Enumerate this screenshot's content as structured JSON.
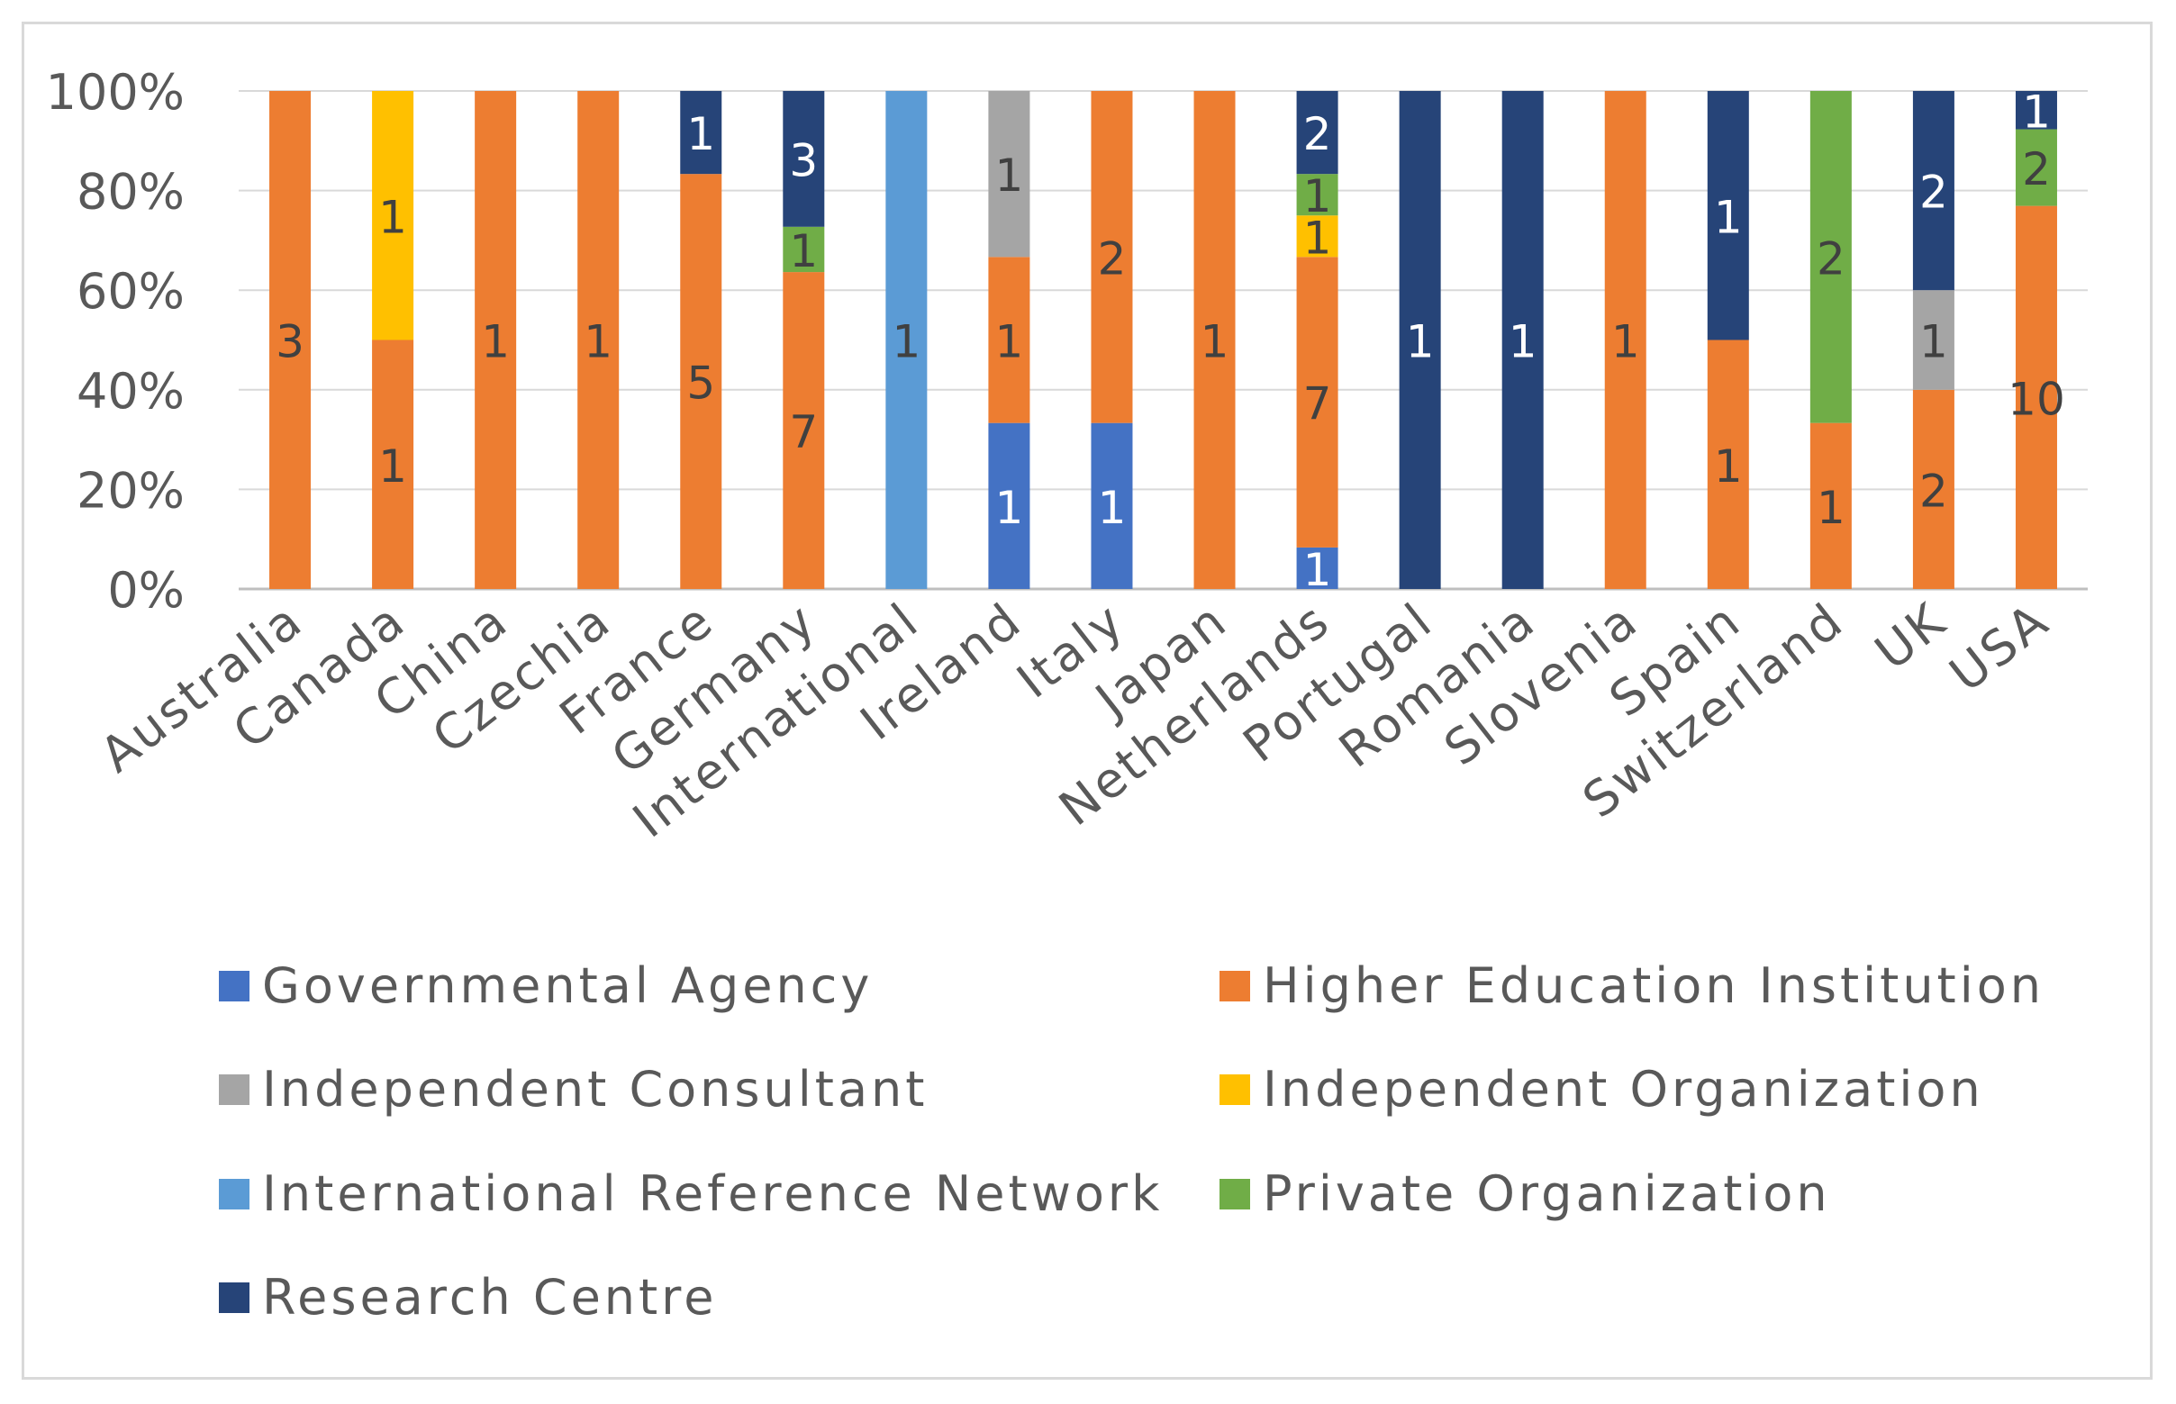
{
  "chart_data": {
    "type": "bar",
    "stacked": "percent",
    "title": "",
    "xlabel": "",
    "ylabel": "",
    "ylim": [
      0,
      100
    ],
    "yticks": [
      "0%",
      "20%",
      "40%",
      "60%",
      "80%",
      "100%"
    ],
    "grid": true,
    "legend_position": "bottom",
    "categories": [
      "Australia",
      "Canada",
      "China",
      "Czechia",
      "France",
      "Germany",
      "International",
      "Ireland",
      "Italy",
      "Japan",
      "Netherlands",
      "Portugal",
      "Romania",
      "Slovenia",
      "Spain",
      "Switzerland",
      "UK",
      "USA"
    ],
    "series": [
      {
        "name": "Governmental Agency",
        "color": "#4472c4",
        "label_color": "#ffffff",
        "values": [
          0,
          0,
          0,
          0,
          0,
          0,
          0,
          1,
          1,
          0,
          1,
          0,
          0,
          0,
          0,
          0,
          0,
          0
        ]
      },
      {
        "name": "Higher Education Institution",
        "color": "#ed7d31",
        "label_color": "#404040",
        "values": [
          3,
          1,
          1,
          1,
          5,
          7,
          0,
          1,
          2,
          1,
          7,
          0,
          0,
          1,
          1,
          1,
          2,
          10
        ]
      },
      {
        "name": "Independent Consultant",
        "color": "#a5a5a5",
        "label_color": "#404040",
        "values": [
          0,
          0,
          0,
          0,
          0,
          0,
          0,
          1,
          0,
          0,
          0,
          0,
          0,
          0,
          0,
          0,
          1,
          0
        ]
      },
      {
        "name": "Independent Organization",
        "color": "#ffc000",
        "label_color": "#404040",
        "values": [
          0,
          1,
          0,
          0,
          0,
          0,
          0,
          0,
          0,
          0,
          1,
          0,
          0,
          0,
          0,
          0,
          0,
          0
        ]
      },
      {
        "name": "International Reference Network",
        "color": "#5b9bd5",
        "label_color": "#404040",
        "values": [
          0,
          0,
          0,
          0,
          0,
          0,
          1,
          0,
          0,
          0,
          0,
          0,
          0,
          0,
          0,
          0,
          0,
          0
        ]
      },
      {
        "name": "Private Organization",
        "color": "#70ad47",
        "label_color": "#404040",
        "values": [
          0,
          0,
          0,
          0,
          0,
          1,
          0,
          0,
          0,
          0,
          1,
          0,
          0,
          0,
          0,
          2,
          0,
          2
        ]
      },
      {
        "name": "Research Centre",
        "color": "#264478",
        "label_color": "#ffffff",
        "values": [
          0,
          0,
          0,
          0,
          1,
          3,
          0,
          0,
          0,
          0,
          2,
          1,
          1,
          0,
          1,
          0,
          2,
          1
        ]
      }
    ]
  }
}
